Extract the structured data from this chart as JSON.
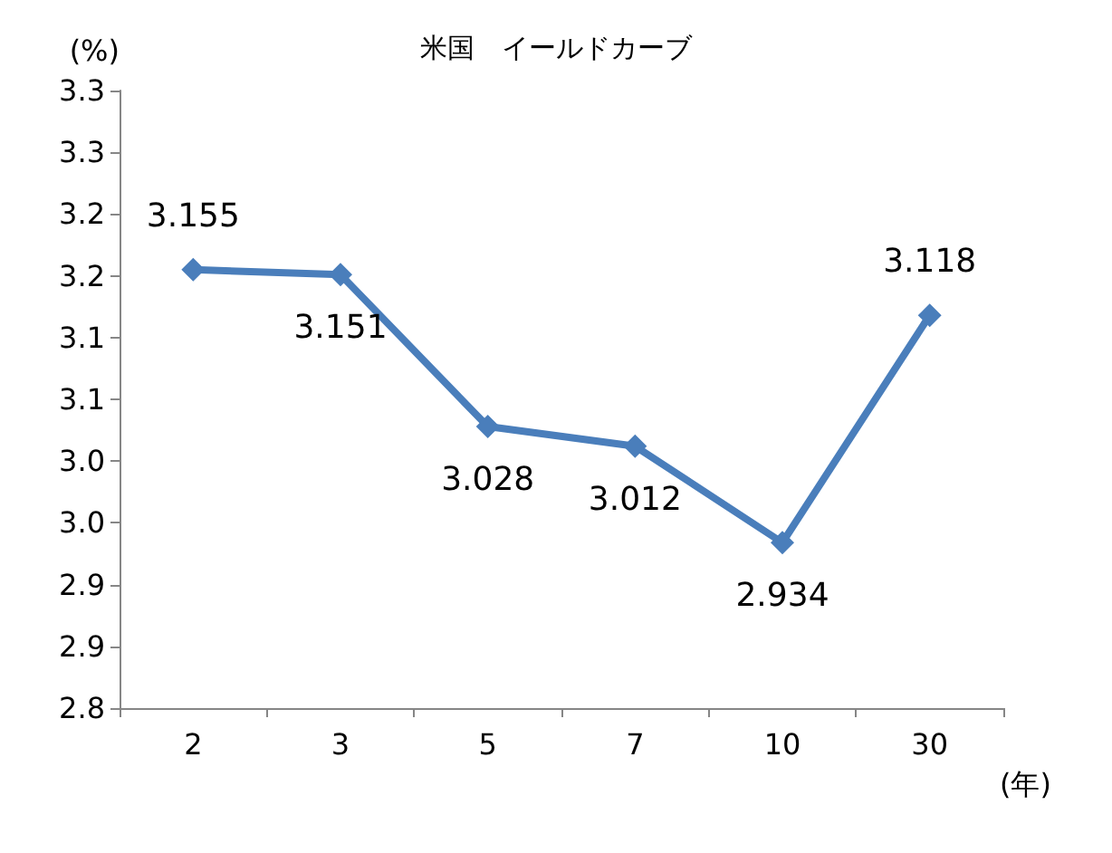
{
  "chart_data": {
    "type": "line",
    "title": "米国　イールドカーブ",
    "ylabel": "(%)",
    "xlabel": "(年)",
    "categories": [
      "2",
      "3",
      "5",
      "7",
      "10",
      "30"
    ],
    "series": [
      {
        "color": "#4a7ebb",
        "values": [
          3.155,
          3.151,
          3.028,
          3.012,
          2.934,
          3.118
        ]
      }
    ],
    "ylim": [
      2.8,
      3.3
    ],
    "yticks": [
      {
        "value": 2.8,
        "label": "2.8"
      },
      {
        "value": 2.85,
        "label": "2.9"
      },
      {
        "value": 2.9,
        "label": "2.9"
      },
      {
        "value": 2.95,
        "label": "3.0"
      },
      {
        "value": 3.0,
        "label": "3.0"
      },
      {
        "value": 3.05,
        "label": "3.1"
      },
      {
        "value": 3.1,
        "label": "3.1"
      },
      {
        "value": 3.15,
        "label": "3.2"
      },
      {
        "value": 3.2,
        "label": "3.2"
      },
      {
        "value": 3.25,
        "label": "3.3"
      },
      {
        "value": 3.3,
        "label": "3.3"
      }
    ],
    "data_labels": true,
    "marker": "diamond",
    "line_style": "solid"
  }
}
